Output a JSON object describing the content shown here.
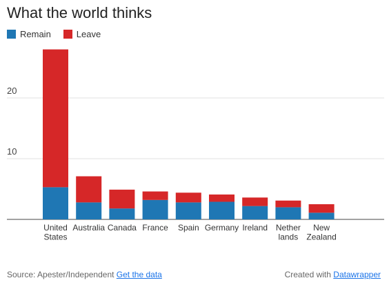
{
  "title": "What the world thinks",
  "legend": [
    {
      "label": "Remain",
      "color": "#1f77b4"
    },
    {
      "label": "Leave",
      "color": "#d62728"
    }
  ],
  "chart_data": {
    "type": "bar",
    "stacked": true,
    "categories": [
      [
        "United",
        "States"
      ],
      [
        "Australia"
      ],
      [
        "Canada"
      ],
      [
        "France"
      ],
      [
        "Spain"
      ],
      [
        "Germany"
      ],
      [
        "Ireland"
      ],
      [
        "Nether",
        "lands"
      ],
      [
        "New",
        "Zealand"
      ]
    ],
    "series": [
      {
        "name": "Remain",
        "color": "#1f77b4",
        "values": [
          5.3,
          2.8,
          1.8,
          3.2,
          2.8,
          2.9,
          2.2,
          2.0,
          1.1
        ]
      },
      {
        "name": "Leave",
        "color": "#d62728",
        "values": [
          22.7,
          4.3,
          3.1,
          1.4,
          1.6,
          1.2,
          1.4,
          1.1,
          1.4
        ]
      }
    ],
    "yticks": [
      10,
      20
    ],
    "ylim": [
      0,
      30
    ],
    "grid": true
  },
  "footer": {
    "source_prefix": "Source: Apester/Independent",
    "source_link": "Get the data",
    "created_prefix": "Created with",
    "created_link": "Datawrapper"
  }
}
